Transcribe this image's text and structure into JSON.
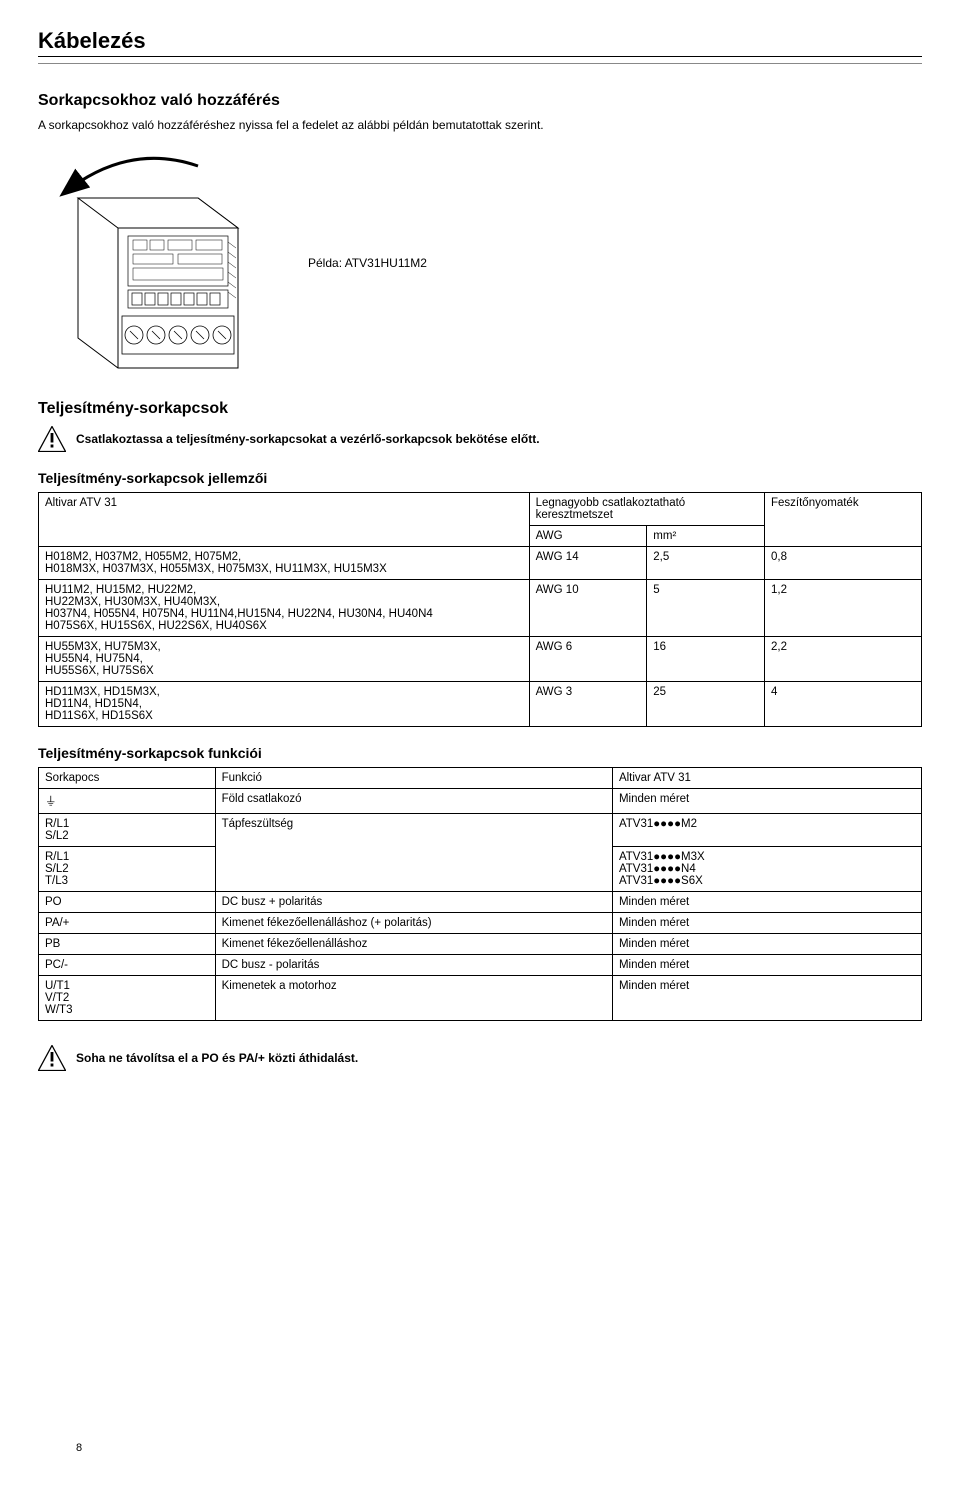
{
  "page_title": "Kábelezés",
  "section1": {
    "heading": "Sorkapcsokhoz való hozzáférés",
    "body": "A sorkapcsokhoz való hozzáféréshez nyissa fel a fedelet az alábbi példán bemutatottak szerint.",
    "example_label": "Példa:  ATV31HU11M2"
  },
  "section2": {
    "heading": "Teljesítmény-sorkapcsok",
    "warning": "Csatlakoztassa a teljesítmény-sorkapcsokat a vezérlő-sorkapcsok bekötése előtt.",
    "sub_heading": "Teljesítmény-sorkapcsok jellemzői",
    "header_model": "Altivar ATV 31",
    "header_cross": "Legnagyobb csatlakoztatható keresztmetszet",
    "header_torque": "Feszítőnyomaték",
    "header_awg": "AWG",
    "header_mm2": "mm²",
    "rows": [
      {
        "model": "H018M2, H037M2, H055M2, H075M2,\nH018M3X, H037M3X, H055M3X, H075M3X, HU11M3X, HU15M3X",
        "awg": "AWG 14",
        "mm2": "2,5",
        "torque": "0,8"
      },
      {
        "model": "HU11M2, HU15M2, HU22M2,\nHU22M3X, HU30M3X, HU40M3X,\nH037N4, H055N4, H075N4, HU11N4,HU15N4, HU22N4, HU30N4, HU40N4\nH075S6X, HU15S6X, HU22S6X, HU40S6X",
        "awg": "AWG 10",
        "mm2": "5",
        "torque": "1,2"
      },
      {
        "model": "HU55M3X, HU75M3X,\nHU55N4, HU75N4,\nHU55S6X, HU75S6X",
        "awg": "AWG 6",
        "mm2": "16",
        "torque": "2,2"
      },
      {
        "model": "HD11M3X, HD15M3X,\nHD11N4, HD15N4,\nHD11S6X, HD15S6X",
        "awg": "AWG 3",
        "mm2": "25",
        "torque": "4"
      }
    ]
  },
  "section3": {
    "heading": "Teljesítmény-sorkapcsok funkciói",
    "hdr_terminal": "Sorkapocs",
    "hdr_function": "Funkció",
    "hdr_model": "Altivar ATV 31",
    "rows": [
      {
        "terminal": "⏚",
        "func": "Föld csatlakozó",
        "model": "Minden méret"
      },
      {
        "terminal": "R/L1\nS/L2",
        "func": "Tápfeszültség",
        "model": "ATV31●●●●M2",
        "rowspan_func": 2
      },
      {
        "terminal": "R/L1\nS/L2\nT/L3",
        "func": "",
        "model": "ATV31●●●●M3X\nATV31●●●●N4\nATV31●●●●S6X"
      },
      {
        "terminal": "PO",
        "func": "DC busz + polaritás",
        "model": "Minden méret"
      },
      {
        "terminal": "PA/+",
        "func": "Kimenet fékezőellenálláshoz (+ polaritás)",
        "model": "Minden méret"
      },
      {
        "terminal": "PB",
        "func": "Kimenet fékezőellenálláshoz",
        "model": "Minden méret"
      },
      {
        "terminal": "PC/-",
        "func": "DC busz - polaritás",
        "model": "Minden méret"
      },
      {
        "terminal": "U/T1\nV/T2\nW/T3",
        "func": "Kimenetek a motorhoz",
        "model": "Minden méret"
      }
    ]
  },
  "final_warning": "Soha ne távolítsa el a PO és PA/+ közti áthidalást.",
  "page_number": "8",
  "colors": {
    "text": "#000000",
    "bg": "#ffffff",
    "rule_thin": "#888888"
  }
}
